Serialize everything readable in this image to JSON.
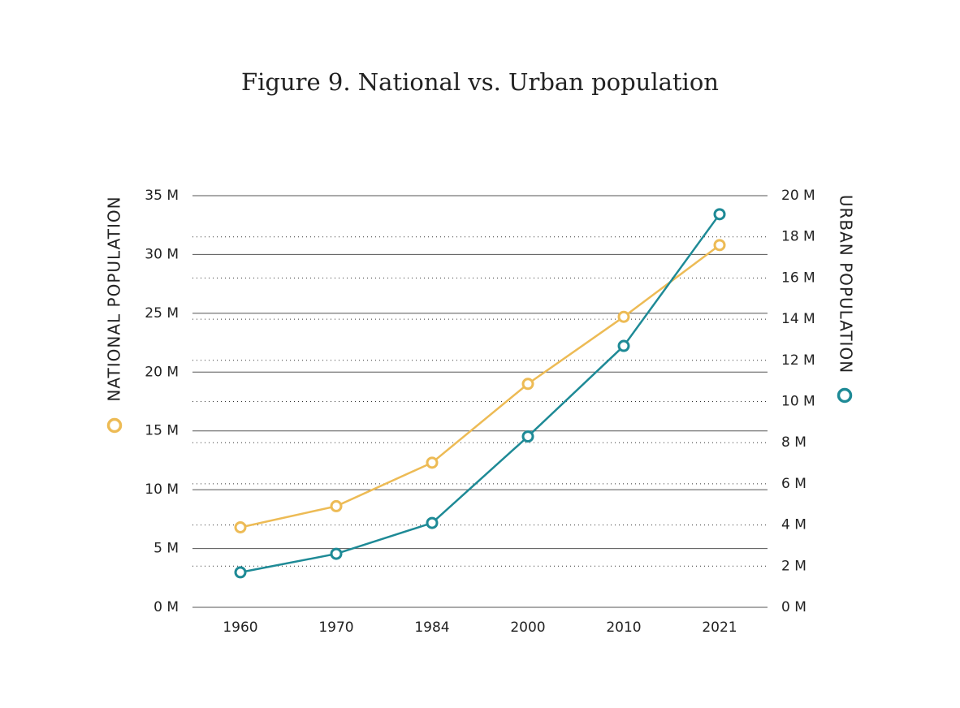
{
  "chart_data": {
    "type": "line",
    "title": "Figure 9. National vs. Urban population",
    "categories": [
      "1960",
      "1970",
      "1984",
      "2000",
      "2010",
      "2021"
    ],
    "series": [
      {
        "name": "NATIONAL POPULATION",
        "color": "#edbb55",
        "values": [
          6.8,
          8.6,
          12.3,
          19.0,
          24.7,
          30.8
        ]
      },
      {
        "name": "URBAN POPULATION",
        "color": "#1e8a96",
        "axis": "y2",
        "values": [
          1.7,
          2.6,
          4.1,
          8.3,
          12.7,
          19.1
        ]
      }
    ],
    "ylim": [
      0,
      35
    ],
    "yticks": [
      {
        "value": 0,
        "label": "0 M"
      },
      {
        "value": 5,
        "label": "5 M"
      },
      {
        "value": 10,
        "label": "10 M"
      },
      {
        "value": 15,
        "label": "15 M"
      },
      {
        "value": 20,
        "label": "20 M"
      },
      {
        "value": 25,
        "label": "25 M"
      },
      {
        "value": 30,
        "label": "30 M"
      },
      {
        "value": 35,
        "label": "35 M"
      }
    ],
    "y2lim": [
      0,
      20
    ],
    "y2ticks": [
      {
        "value": 0,
        "label": "0 M"
      },
      {
        "value": 2,
        "label": "2 M"
      },
      {
        "value": 4,
        "label": "4 M"
      },
      {
        "value": 6,
        "label": "6 M"
      },
      {
        "value": 8,
        "label": "8 M"
      },
      {
        "value": 10,
        "label": "10 M"
      },
      {
        "value": 12,
        "label": "12 M"
      },
      {
        "value": 14,
        "label": "14 M"
      },
      {
        "value": 16,
        "label": "16 M"
      },
      {
        "value": 18,
        "label": "18 M"
      },
      {
        "value": 20,
        "label": "20 M"
      }
    ],
    "grid": true
  }
}
